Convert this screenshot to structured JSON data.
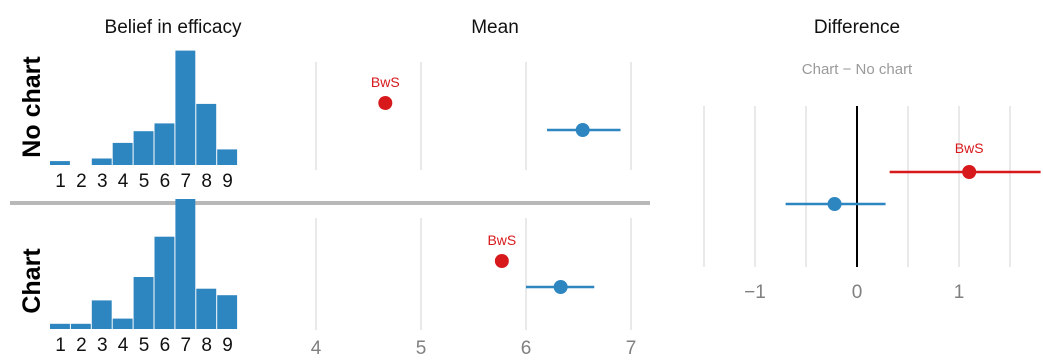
{
  "colors": {
    "blue": "#2e86c1",
    "red": "#d7191c",
    "grid": "#d3d3d3",
    "separator": "#b8b8b8",
    "zero_line": "#000000"
  },
  "chart_data": [
    {
      "type": "bar",
      "title": "Belief in efficacy",
      "categories": [
        "1",
        "2",
        "3",
        "4",
        "5",
        "6",
        "7",
        "8",
        "9"
      ],
      "series": [
        {
          "panel": "No chart",
          "values": [
            0.03,
            0,
            0.05,
            0.17,
            0.26,
            0.32,
            0.88,
            0.47,
            0.12
          ]
        },
        {
          "panel": "Chart",
          "values": [
            0.04,
            0.04,
            0.22,
            0.08,
            0.4,
            0.71,
            1.0,
            0.31,
            0.26
          ]
        }
      ],
      "note": "bar heights relative to tallest bar; no y-axis shown"
    },
    {
      "type": "scatter",
      "title": "Mean",
      "xlim": [
        3.75,
        7.1
      ],
      "xticks": [
        "4",
        "5",
        "6",
        "7"
      ],
      "panels": [
        {
          "panel": "No chart",
          "points": [
            {
              "label": "BwS",
              "color": "red",
              "x": 4.66
            },
            {
              "label": "",
              "color": "blue",
              "x": 6.54,
              "ci": [
                6.2,
                6.9
              ]
            }
          ]
        },
        {
          "panel": "Chart",
          "points": [
            {
              "label": "BwS",
              "color": "red",
              "x": 5.77
            },
            {
              "label": "",
              "color": "blue",
              "x": 6.33,
              "ci": [
                6.0,
                6.65
              ]
            }
          ]
        }
      ]
    },
    {
      "type": "scatter",
      "title": "Difference",
      "subtitle": "Chart − No chart",
      "xlim": [
        -1.5,
        1.8
      ],
      "xticks": [
        "−1",
        "0",
        "1"
      ],
      "points": [
        {
          "label": "BwS",
          "color": "red",
          "x": 1.1,
          "ci": [
            0.32,
            1.8
          ]
        },
        {
          "label": "",
          "color": "blue",
          "x": -0.22,
          "ci": [
            -0.7,
            0.28
          ]
        }
      ]
    }
  ],
  "row_labels": [
    "No chart",
    "Chart"
  ]
}
